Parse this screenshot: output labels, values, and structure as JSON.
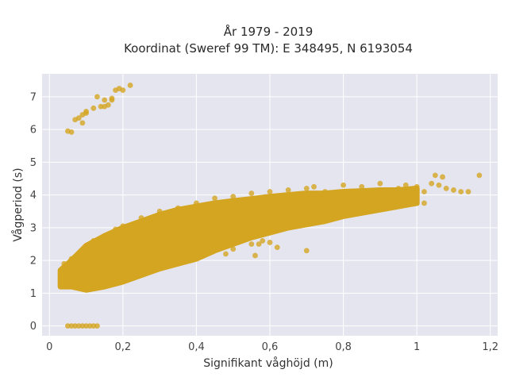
{
  "chart_data": {
    "type": "scatter",
    "title": "År 1979 - 2019",
    "subtitle": "Koordinat (Sweref 99 TM): E 348495, N 6193054",
    "xlabel": "Signifikant våghöjd (m)",
    "ylabel": "Vågperiod (s)",
    "xlim": [
      -0.02,
      1.22
    ],
    "ylim": [
      -0.3,
      7.7
    ],
    "x_ticks": [
      0,
      0.2,
      0.4,
      0.6,
      0.8,
      1,
      1.2
    ],
    "x_tick_labels": [
      "0",
      "0,2",
      "0,4",
      "0,6",
      "0,8",
      "1",
      "1,2"
    ],
    "y_ticks": [
      0,
      1,
      2,
      3,
      4,
      5,
      6,
      7
    ],
    "y_tick_labels": [
      "0",
      "1",
      "2",
      "3",
      "4",
      "5",
      "6",
      "7"
    ],
    "grid": true,
    "marker_color": "#D4A520",
    "background_color": "#E5E5EF",
    "points": [
      [
        0.05,
        5.95
      ],
      [
        0.06,
        5.92
      ],
      [
        0.07,
        6.3
      ],
      [
        0.08,
        6.35
      ],
      [
        0.09,
        6.45
      ],
      [
        0.09,
        6.2
      ],
      [
        0.1,
        6.55
      ],
      [
        0.1,
        6.5
      ],
      [
        0.12,
        6.65
      ],
      [
        0.13,
        7.0
      ],
      [
        0.14,
        6.7
      ],
      [
        0.15,
        6.9
      ],
      [
        0.15,
        6.7
      ],
      [
        0.16,
        6.75
      ],
      [
        0.17,
        6.9
      ],
      [
        0.17,
        6.95
      ],
      [
        0.18,
        7.2
      ],
      [
        0.19,
        7.25
      ],
      [
        0.2,
        7.2
      ],
      [
        0.22,
        7.35
      ],
      [
        0.05,
        0.0
      ],
      [
        0.06,
        0.0
      ],
      [
        0.07,
        0.0
      ],
      [
        0.08,
        0.0
      ],
      [
        0.09,
        0.0
      ],
      [
        0.1,
        0.0
      ],
      [
        0.11,
        0.0
      ],
      [
        0.12,
        0.0
      ],
      [
        0.13,
        0.0
      ],
      [
        0.03,
        1.3
      ],
      [
        0.03,
        1.5
      ],
      [
        0.04,
        1.4
      ],
      [
        0.05,
        1.6
      ],
      [
        0.06,
        1.2
      ],
      [
        0.07,
        1.7
      ],
      [
        0.08,
        1.35
      ],
      [
        0.1,
        1.15
      ],
      [
        0.12,
        1.25
      ],
      [
        0.04,
        1.9
      ],
      [
        0.06,
        2.05
      ],
      [
        0.08,
        2.2
      ],
      [
        0.1,
        2.45
      ],
      [
        0.12,
        2.6
      ],
      [
        0.15,
        2.75
      ],
      [
        0.18,
        2.95
      ],
      [
        0.2,
        3.05
      ],
      [
        0.25,
        3.3
      ],
      [
        0.3,
        3.5
      ],
      [
        0.35,
        3.6
      ],
      [
        0.4,
        3.75
      ],
      [
        0.45,
        3.9
      ],
      [
        0.5,
        3.95
      ],
      [
        0.55,
        4.05
      ],
      [
        0.6,
        4.1
      ],
      [
        0.65,
        4.15
      ],
      [
        0.7,
        4.2
      ],
      [
        0.72,
        4.25
      ],
      [
        0.75,
        4.1
      ],
      [
        0.8,
        4.3
      ],
      [
        0.85,
        4.25
      ],
      [
        0.9,
        4.35
      ],
      [
        0.95,
        4.2
      ],
      [
        0.97,
        4.3
      ],
      [
        1.0,
        4.25
      ],
      [
        1.02,
        4.1
      ],
      [
        1.04,
        4.35
      ],
      [
        1.05,
        4.6
      ],
      [
        1.06,
        4.3
      ],
      [
        1.07,
        4.55
      ],
      [
        1.08,
        4.2
      ],
      [
        1.1,
        4.15
      ],
      [
        1.12,
        4.1
      ],
      [
        1.17,
        4.6
      ],
      [
        1.14,
        4.1
      ],
      [
        1.0,
        3.95
      ],
      [
        1.02,
        3.75
      ],
      [
        0.95,
        3.95
      ],
      [
        0.92,
        3.6
      ],
      [
        0.9,
        3.7
      ],
      [
        0.86,
        3.5
      ],
      [
        0.82,
        3.55
      ],
      [
        0.78,
        3.4
      ],
      [
        0.7,
        3.3
      ],
      [
        0.65,
        3.1
      ],
      [
        0.6,
        2.95
      ],
      [
        0.55,
        2.8
      ],
      [
        0.5,
        2.7
      ],
      [
        0.45,
        2.55
      ],
      [
        0.42,
        2.4
      ],
      [
        0.38,
        2.2
      ],
      [
        0.35,
        2.1
      ],
      [
        0.3,
        1.95
      ],
      [
        0.25,
        1.8
      ],
      [
        0.2,
        1.6
      ],
      [
        0.15,
        1.5
      ],
      [
        0.6,
        2.55
      ],
      [
        0.55,
        2.5
      ],
      [
        0.5,
        2.35
      ],
      [
        0.57,
        2.5
      ],
      [
        0.62,
        2.4
      ],
      [
        0.56,
        2.15
      ],
      [
        0.58,
        2.6
      ],
      [
        0.48,
        2.2
      ],
      [
        0.7,
        2.3
      ]
    ],
    "density_band": [
      {
        "x": 0.03,
        "y_low": 1.2,
        "y_high": 1.7
      },
      {
        "x": 0.06,
        "y_low": 1.2,
        "y_high": 2.0
      },
      {
        "x": 0.1,
        "y_low": 1.1,
        "y_high": 2.45
      },
      {
        "x": 0.15,
        "y_low": 1.2,
        "y_high": 2.75
      },
      {
        "x": 0.2,
        "y_low": 1.35,
        "y_high": 3.0
      },
      {
        "x": 0.25,
        "y_low": 1.55,
        "y_high": 3.2
      },
      {
        "x": 0.3,
        "y_low": 1.75,
        "y_high": 3.4
      },
      {
        "x": 0.35,
        "y_low": 1.9,
        "y_high": 3.55
      },
      {
        "x": 0.4,
        "y_low": 2.05,
        "y_high": 3.65
      },
      {
        "x": 0.45,
        "y_low": 2.3,
        "y_high": 3.75
      },
      {
        "x": 0.5,
        "y_low": 2.5,
        "y_high": 3.82
      },
      {
        "x": 0.55,
        "y_low": 2.7,
        "y_high": 3.88
      },
      {
        "x": 0.6,
        "y_low": 2.85,
        "y_high": 3.95
      },
      {
        "x": 0.65,
        "y_low": 3.0,
        "y_high": 4.0
      },
      {
        "x": 0.7,
        "y_low": 3.1,
        "y_high": 4.05
      },
      {
        "x": 0.75,
        "y_low": 3.2,
        "y_high": 4.05
      },
      {
        "x": 0.8,
        "y_low": 3.35,
        "y_high": 4.1
      },
      {
        "x": 0.85,
        "y_low": 3.45,
        "y_high": 4.12
      },
      {
        "x": 0.9,
        "y_low": 3.55,
        "y_high": 4.15
      },
      {
        "x": 0.95,
        "y_low": 3.65,
        "y_high": 4.15
      },
      {
        "x": 1.0,
        "y_low": 3.75,
        "y_high": 4.2
      }
    ]
  }
}
